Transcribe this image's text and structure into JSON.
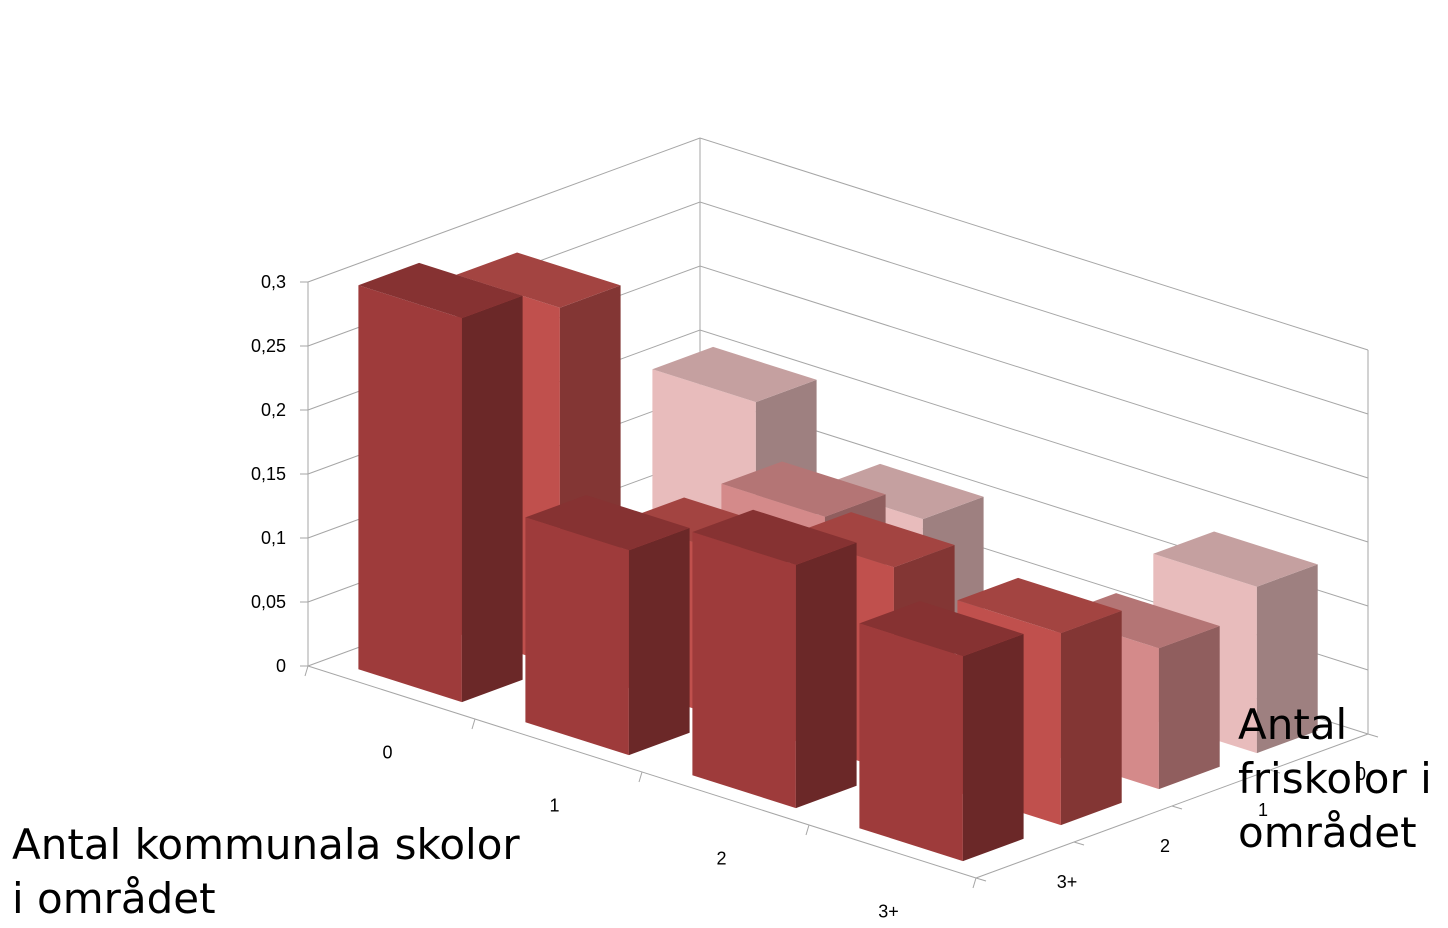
{
  "chart_data": {
    "type": "bar3d",
    "z_ticks": [
      "0",
      "0,05",
      "0,1",
      "0,15",
      "0,2",
      "0,25",
      "0,3"
    ],
    "zlim": [
      0,
      0.3
    ],
    "x_axis": {
      "label": "Antal kommunala skolor\ni området",
      "categories": [
        "0",
        "1",
        "2",
        "3+"
      ]
    },
    "y_axis": {
      "label": "Antal\nfriskolor i\nområdet",
      "categories": [
        "0",
        "1",
        "2",
        "3+"
      ]
    },
    "series": [
      {
        "name": "0",
        "values": [
          0.15,
          0.1,
          0.01,
          0.13
        ],
        "color": "#e8bcbc"
      },
      {
        "name": "1",
        "values": [
          0.05,
          0.13,
          0.01,
          0.11
        ],
        "color": "#d48a8a"
      },
      {
        "name": "2",
        "values": [
          0.28,
          0.13,
          0.16,
          0.15
        ],
        "color": "#c0504d"
      },
      {
        "name": "3+",
        "values": [
          0.3,
          0.16,
          0.19,
          0.16
        ],
        "color": "#9e3b3b"
      }
    ],
    "grid": true
  }
}
